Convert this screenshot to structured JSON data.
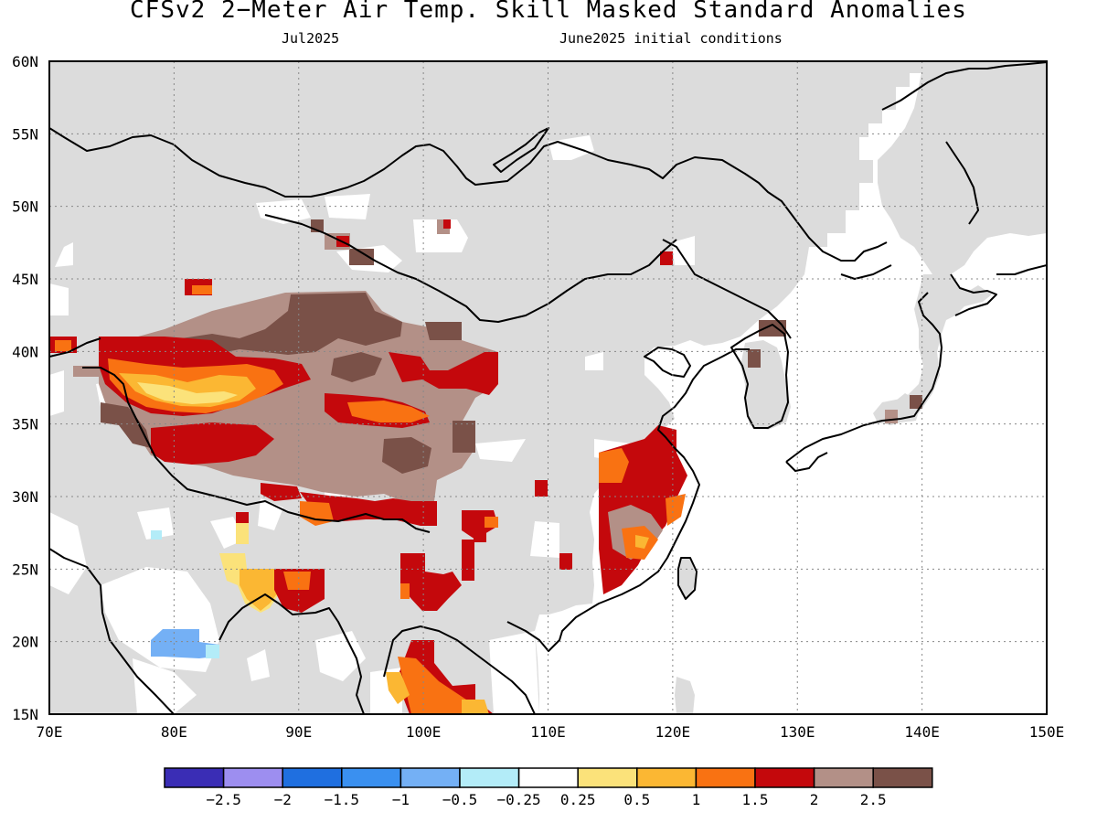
{
  "title": "CFSv2 2−Meter Air Temp. Skill Masked Standard Anomalies",
  "subtitle_left": "Jul2025",
  "subtitle_right": "June2025 initial conditions",
  "axes": {
    "lon_labels": [
      "70E",
      "80E",
      "90E",
      "100E",
      "110E",
      "120E",
      "130E",
      "140E",
      "150E"
    ],
    "lat_labels": [
      "15N",
      "20N",
      "25N",
      "30N",
      "35N",
      "40N",
      "45N",
      "50N",
      "55N",
      "60N"
    ],
    "lon_range": [
      70,
      150
    ],
    "lat_range": [
      15,
      60
    ],
    "grid": "dotted"
  },
  "colorbar": {
    "labels": [
      "−2.5",
      "−2",
      "−1.5",
      "−1",
      "−0.5",
      "−0.25",
      "0.25",
      "0.5",
      "1",
      "1.5",
      "2",
      "2.5"
    ],
    "colors": [
      "#3a2db5",
      "#9d8ef0",
      "#1f6fe0",
      "#3a90f0",
      "#74b0f5",
      "#b3ecf8",
      "#ffffff",
      "#fbe27a",
      "#fbb733",
      "#f97212",
      "#c4080c",
      "#b39087",
      "#7a5148"
    ]
  },
  "colors": {
    "masked": "#dcdcdc",
    "ocean": "#ffffff",
    "coast": "#000000"
  }
}
